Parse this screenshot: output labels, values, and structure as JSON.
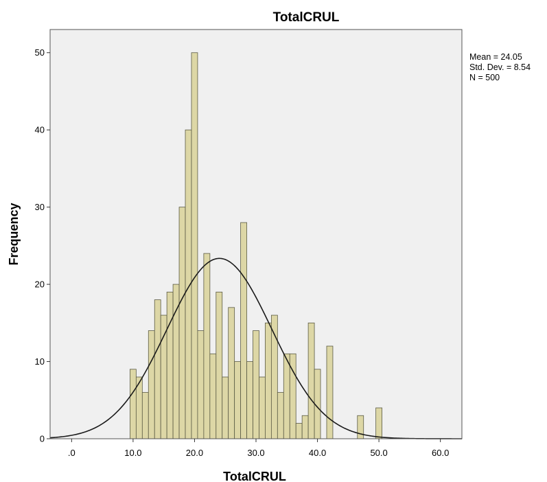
{
  "chart_data": {
    "type": "histogram",
    "title": "TotalCRUL",
    "xlabel": "TotalCRUL",
    "ylabel": "Frequency",
    "xlim": [
      -3.5,
      63.5
    ],
    "ylim": [
      0,
      53
    ],
    "x_ticks": [
      0,
      10,
      20,
      30,
      40,
      50,
      60
    ],
    "x_tick_labels": [
      ".0",
      "10.0",
      "20.0",
      "30.0",
      "40.0",
      "50.0",
      "60.0"
    ],
    "y_ticks": [
      0,
      10,
      20,
      30,
      40,
      50
    ],
    "y_tick_labels": [
      "0",
      "10",
      "20",
      "30",
      "40",
      "50"
    ],
    "bin_width": 1,
    "bins": [
      {
        "x": 10,
        "count": 9
      },
      {
        "x": 11,
        "count": 8
      },
      {
        "x": 12,
        "count": 6
      },
      {
        "x": 13,
        "count": 14
      },
      {
        "x": 14,
        "count": 18
      },
      {
        "x": 15,
        "count": 16
      },
      {
        "x": 16,
        "count": 19
      },
      {
        "x": 17,
        "count": 20
      },
      {
        "x": 18,
        "count": 30
      },
      {
        "x": 19,
        "count": 40
      },
      {
        "x": 20,
        "count": 50
      },
      {
        "x": 21,
        "count": 14
      },
      {
        "x": 22,
        "count": 24
      },
      {
        "x": 23,
        "count": 11
      },
      {
        "x": 24,
        "count": 19
      },
      {
        "x": 25,
        "count": 8
      },
      {
        "x": 26,
        "count": 17
      },
      {
        "x": 27,
        "count": 10
      },
      {
        "x": 28,
        "count": 28
      },
      {
        "x": 29,
        "count": 10
      },
      {
        "x": 30,
        "count": 14
      },
      {
        "x": 31,
        "count": 8
      },
      {
        "x": 32,
        "count": 15
      },
      {
        "x": 33,
        "count": 16
      },
      {
        "x": 34,
        "count": 6
      },
      {
        "x": 35,
        "count": 11
      },
      {
        "x": 36,
        "count": 11
      },
      {
        "x": 37,
        "count": 2
      },
      {
        "x": 38,
        "count": 3
      },
      {
        "x": 39,
        "count": 15
      },
      {
        "x": 40,
        "count": 9
      },
      {
        "x": 42,
        "count": 12
      },
      {
        "x": 47,
        "count": 3
      },
      {
        "x": 50,
        "count": 4
      }
    ],
    "normal_curve": {
      "mean": 24.05,
      "std_dev": 8.54,
      "n": 500
    },
    "stats": {
      "mean_text": "Mean = 24.05",
      "std_text": "Std. Dev. = 8.54",
      "n_text": "N = 500"
    },
    "colors": {
      "bar_fill": "#ddd7a6",
      "bar_stroke": "#5a5a44",
      "plot_background": "#f0f0f0",
      "curve": "#1a1a1a"
    }
  }
}
